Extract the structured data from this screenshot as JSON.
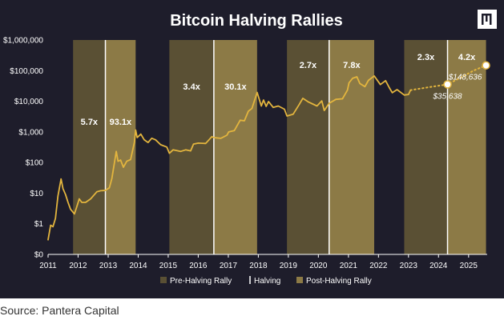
{
  "source": "Source: Pantera Capital",
  "colors": {
    "background": "#1e1d2b",
    "pre_rally": "#5a5034",
    "post_rally": "#8c7a46",
    "price_line": "#e3b53e",
    "halving_line": "#ffffff"
  },
  "logo_icon": "pantera-logo-icon",
  "chart_data": {
    "type": "line",
    "title": "Bitcoin Halving Rallies",
    "y_scale": "log",
    "ylim": [
      0,
      1000000
    ],
    "y_ticks": [
      "$0",
      "$1",
      "$10",
      "$100",
      "$1,000",
      "$10,000",
      "$100,000",
      "$1,000,000"
    ],
    "x_ticks": [
      "2011",
      "2012",
      "2013",
      "2014",
      "2015",
      "2016",
      "2017",
      "2018",
      "2019",
      "2020",
      "2021",
      "2022",
      "2023",
      "2024",
      "2025"
    ],
    "halving_dates": [
      "2012-11-28",
      "2016-07-09",
      "2020-05-11",
      "2024-04-20"
    ],
    "bands": [
      {
        "type": "pre",
        "start": "2011-11-01",
        "end": "2012-11-28",
        "label": "5.7x"
      },
      {
        "type": "post",
        "start": "2012-11-28",
        "end": "2013-12-01",
        "label": "93.1x"
      },
      {
        "type": "pre",
        "start": "2015-01-15",
        "end": "2016-07-09",
        "label": "3.4x"
      },
      {
        "type": "post",
        "start": "2016-07-09",
        "end": "2017-12-17",
        "label": "30.1x"
      },
      {
        "type": "pre",
        "start": "2018-12-15",
        "end": "2020-05-11",
        "label": "2.7x"
      },
      {
        "type": "post",
        "start": "2020-05-11",
        "end": "2021-11-10",
        "label": "7.8x"
      },
      {
        "type": "pre",
        "start": "2022-11-10",
        "end": "2024-04-20",
        "label": "2.3x"
      },
      {
        "type": "post",
        "start": "2024-04-20",
        "end": "2025-08-01",
        "label": "4.2x"
      }
    ],
    "series": [
      {
        "values": [
          [
            "2011-01-01",
            0.3
          ],
          [
            "2011-02-01",
            0.9
          ],
          [
            "2011-03-01",
            0.8
          ],
          [
            "2011-04-01",
            1.5
          ],
          [
            "2011-05-01",
            8
          ],
          [
            "2011-06-08",
            29
          ],
          [
            "2011-07-01",
            14
          ],
          [
            "2011-08-01",
            9
          ],
          [
            "2011-09-01",
            5
          ],
          [
            "2011-10-01",
            3
          ],
          [
            "2011-11-18",
            2.1
          ],
          [
            "2011-12-15",
            3.5
          ],
          [
            "2012-01-15",
            6.5
          ],
          [
            "2012-02-15",
            5
          ],
          [
            "2012-04-01",
            5
          ],
          [
            "2012-06-01",
            6.5
          ],
          [
            "2012-08-15",
            11
          ],
          [
            "2012-10-01",
            12
          ],
          [
            "2012-11-28",
            12.3
          ],
          [
            "2013-01-15",
            15
          ],
          [
            "2013-02-15",
            30
          ],
          [
            "2013-04-09",
            230
          ],
          [
            "2013-05-01",
            110
          ],
          [
            "2013-06-01",
            120
          ],
          [
            "2013-07-05",
            70
          ],
          [
            "2013-08-15",
            110
          ],
          [
            "2013-10-01",
            125
          ],
          [
            "2013-11-15",
            450
          ],
          [
            "2013-12-01",
            1150
          ],
          [
            "2013-12-20",
            650
          ],
          [
            "2014-02-01",
            850
          ],
          [
            "2014-03-15",
            550
          ],
          [
            "2014-05-01",
            450
          ],
          [
            "2014-06-15",
            620
          ],
          [
            "2014-08-01",
            550
          ],
          [
            "2014-10-01",
            380
          ],
          [
            "2014-12-15",
            320
          ],
          [
            "2015-01-15",
            200
          ],
          [
            "2015-03-01",
            260
          ],
          [
            "2015-06-01",
            230
          ],
          [
            "2015-08-01",
            260
          ],
          [
            "2015-10-01",
            240
          ],
          [
            "2015-11-05",
            400
          ],
          [
            "2016-01-01",
            430
          ],
          [
            "2016-04-01",
            420
          ],
          [
            "2016-06-15",
            700
          ],
          [
            "2016-07-09",
            650
          ],
          [
            "2016-10-01",
            615
          ],
          [
            "2016-12-15",
            780
          ],
          [
            "2017-01-05",
            1000
          ],
          [
            "2017-03-15",
            1100
          ],
          [
            "2017-05-25",
            2400
          ],
          [
            "2017-07-15",
            2300
          ],
          [
            "2017-09-01",
            4700
          ],
          [
            "2017-10-15",
            5800
          ],
          [
            "2017-12-17",
            19500
          ],
          [
            "2018-02-06",
            7000
          ],
          [
            "2018-03-05",
            11000
          ],
          [
            "2018-04-06",
            6800
          ],
          [
            "2018-05-05",
            9800
          ],
          [
            "2018-07-01",
            6300
          ],
          [
            "2018-09-01",
            7000
          ],
          [
            "2018-11-15",
            5500
          ],
          [
            "2018-12-15",
            3300
          ],
          [
            "2019-03-01",
            3800
          ],
          [
            "2019-05-15",
            8000
          ],
          [
            "2019-06-26",
            12500
          ],
          [
            "2019-09-01",
            9500
          ],
          [
            "2019-12-15",
            7000
          ],
          [
            "2020-02-12",
            10300
          ],
          [
            "2020-03-13",
            5000
          ],
          [
            "2020-05-11",
            8600
          ],
          [
            "2020-08-01",
            11500
          ],
          [
            "2020-10-20",
            12000
          ],
          [
            "2020-12-20",
            23000
          ],
          [
            "2021-01-08",
            40000
          ],
          [
            "2021-02-20",
            56000
          ],
          [
            "2021-04-14",
            63000
          ],
          [
            "2021-05-20",
            38000
          ],
          [
            "2021-07-20",
            30000
          ],
          [
            "2021-09-01",
            48000
          ],
          [
            "2021-11-10",
            67000
          ],
          [
            "2022-01-24",
            35000
          ],
          [
            "2022-03-28",
            47000
          ],
          [
            "2022-05-12",
            28000
          ],
          [
            "2022-06-18",
            19000
          ],
          [
            "2022-08-15",
            24000
          ],
          [
            "2022-11-10",
            16000
          ],
          [
            "2023-01-01",
            16600
          ],
          [
            "2023-01-25",
            23000
          ]
        ]
      },
      {
        "style": "projection",
        "values": [
          [
            "2023-01-25",
            23000
          ],
          [
            "2023-07-01",
            27000
          ],
          [
            "2024-01-01",
            32000
          ],
          [
            "2024-04-20",
            35638
          ],
          [
            "2024-10-01",
            60000
          ],
          [
            "2025-03-01",
            100000
          ],
          [
            "2025-08-01",
            148636
          ]
        ]
      }
    ],
    "annotations": [
      {
        "x": "2024-04-20",
        "y": 35638,
        "label": "$35,638"
      },
      {
        "x": "2025-08-01",
        "y": 148636,
        "label": "$148,636"
      }
    ],
    "legend": {
      "position": "bottom",
      "items": [
        {
          "key": "pre",
          "label": "Pre-Halving Rally"
        },
        {
          "key": "halving",
          "label": "Halving"
        },
        {
          "key": "post",
          "label": "Post-Halving Rally"
        }
      ]
    }
  }
}
